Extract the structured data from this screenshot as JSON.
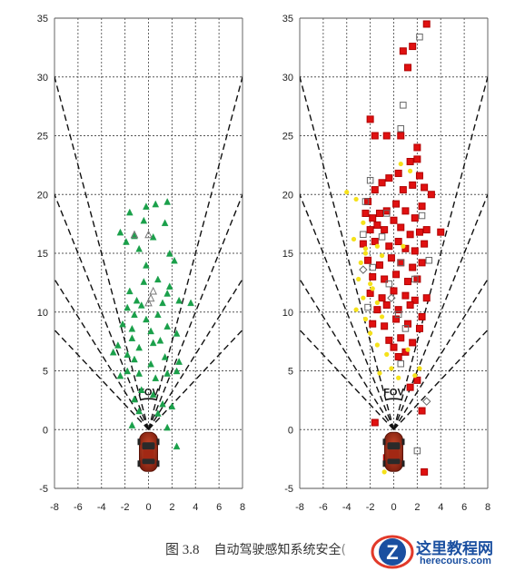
{
  "caption": {
    "figure_number": "图 3.8",
    "text": "自动驾驶感知系统安全",
    "truncated_char": "("
  },
  "watermark": {
    "brand": "这里教程网",
    "site": "herecours.com",
    "logo_letter": "Z"
  },
  "colors": {
    "green": "#1aa04a",
    "red": "#e01010",
    "yellow": "#f5e11a",
    "car": "#b8311c",
    "grid": "#555555"
  },
  "chart_data": [
    {
      "type": "scatter",
      "title": "",
      "xlabel": "",
      "ylabel": "",
      "xlim": [
        -8,
        8
      ],
      "ylim": [
        -5,
        35
      ],
      "xticks": [
        -8,
        -6,
        -4,
        -2,
        0,
        2,
        4,
        6,
        8
      ],
      "yticks": [
        -5,
        0,
        5,
        10,
        15,
        20,
        25,
        30,
        35
      ],
      "grid": true,
      "annotation": "FOV",
      "fov_lines_slopes": [
        3.75,
        2.5,
        1.6,
        1.06
      ],
      "series": [
        {
          "marker": "triangle-filled",
          "color": "#1aa04a",
          "points": [
            [
              -1.6,
              18.5
            ],
            [
              -0.4,
              17.8
            ],
            [
              -0.2,
              19.0
            ],
            [
              0.6,
              19.2
            ],
            [
              1.6,
              19.4
            ],
            [
              -1.2,
              16.5
            ],
            [
              1.4,
              17.6
            ],
            [
              -1.9,
              16.0
            ],
            [
              -2.4,
              16.8
            ],
            [
              0.4,
              16.4
            ],
            [
              -0.8,
              15.4
            ],
            [
              1.8,
              15.0
            ],
            [
              2.2,
              14.4
            ],
            [
              -0.2,
              14.0
            ],
            [
              -0.4,
              12.6
            ],
            [
              0.8,
              12.8
            ],
            [
              1.8,
              12.2
            ],
            [
              -1.6,
              11.8
            ],
            [
              -1.0,
              11.0
            ],
            [
              -0.6,
              10.6
            ],
            [
              -1.8,
              10.4
            ],
            [
              -1.2,
              9.8
            ],
            [
              -0.2,
              9.4
            ],
            [
              0.8,
              9.8
            ],
            [
              1.2,
              10.8
            ],
            [
              1.6,
              11.6
            ],
            [
              2.6,
              11.0
            ],
            [
              3.6,
              10.8
            ],
            [
              -2.2,
              9.0
            ],
            [
              -1.4,
              8.6
            ],
            [
              0.2,
              8.4
            ],
            [
              1.6,
              8.8
            ],
            [
              2.4,
              8.2
            ],
            [
              -1.4,
              7.8
            ],
            [
              -0.8,
              7.0
            ],
            [
              0.4,
              7.4
            ],
            [
              1.0,
              7.6
            ],
            [
              -2.6,
              7.2
            ],
            [
              -3.0,
              6.6
            ],
            [
              -1.8,
              6.4
            ],
            [
              -1.2,
              6.0
            ],
            [
              0.2,
              5.6
            ],
            [
              1.4,
              6.2
            ],
            [
              2.6,
              5.8
            ],
            [
              -2.4,
              4.6
            ],
            [
              -1.8,
              5.0
            ],
            [
              -0.8,
              4.8
            ],
            [
              0.6,
              4.4
            ],
            [
              1.6,
              4.8
            ],
            [
              2.4,
              5.0
            ],
            [
              -0.6,
              3.4
            ],
            [
              0.4,
              3.0
            ],
            [
              -1.2,
              2.6
            ],
            [
              1.2,
              2.2
            ],
            [
              2.0,
              2.0
            ],
            [
              -0.8,
              1.6
            ],
            [
              0.8,
              1.4
            ],
            [
              -1.4,
              0.4
            ],
            [
              1.6,
              0.2
            ],
            [
              2.4,
              -1.4
            ]
          ]
        },
        {
          "marker": "triangle-open",
          "color": "#777777",
          "points": [
            [
              -1.2,
              16.6
            ],
            [
              0.0,
              16.6
            ],
            [
              0.4,
              11.8
            ],
            [
              0.2,
              11.2
            ],
            [
              0.0,
              10.8
            ]
          ]
        }
      ]
    },
    {
      "type": "scatter",
      "title": "",
      "xlabel": "",
      "ylabel": "",
      "xlim": [
        -8,
        8
      ],
      "ylim": [
        -5,
        35
      ],
      "xticks": [
        -8,
        -6,
        -4,
        -2,
        0,
        2,
        4,
        6,
        8
      ],
      "yticks": [
        -5,
        0,
        5,
        10,
        15,
        20,
        25,
        30,
        35
      ],
      "grid": true,
      "annotation": "FOV",
      "fov_lines_slopes": [
        3.75,
        2.5,
        1.6,
        1.06
      ],
      "series": [
        {
          "marker": "square-filled",
          "color": "#e01010",
          "points": [
            [
              2.8,
              34.5
            ],
            [
              1.6,
              32.6
            ],
            [
              0.8,
              32.2
            ],
            [
              1.2,
              30.8
            ],
            [
              -2.0,
              26.4
            ],
            [
              -1.6,
              25.0
            ],
            [
              -0.6,
              25.0
            ],
            [
              0.6,
              25.0
            ],
            [
              2.0,
              24.0
            ],
            [
              1.4,
              22.8
            ],
            [
              2.0,
              23.0
            ],
            [
              -2.2,
              19.4
            ],
            [
              -1.6,
              20.4
            ],
            [
              -1.0,
              21.0
            ],
            [
              -0.4,
              21.4
            ],
            [
              0.4,
              21.8
            ],
            [
              0.8,
              20.4
            ],
            [
              1.6,
              20.8
            ],
            [
              2.2,
              21.6
            ],
            [
              2.6,
              20.6
            ],
            [
              3.2,
              20.0
            ],
            [
              -2.4,
              18.4
            ],
            [
              -1.8,
              18.0
            ],
            [
              -1.2,
              18.4
            ],
            [
              -0.6,
              18.6
            ],
            [
              0.2,
              19.2
            ],
            [
              1.0,
              18.6
            ],
            [
              1.8,
              18.0
            ],
            [
              2.4,
              19.0
            ],
            [
              -2.0,
              17.0
            ],
            [
              -1.4,
              17.4
            ],
            [
              -0.8,
              17.0
            ],
            [
              0.0,
              17.8
            ],
            [
              0.6,
              17.2
            ],
            [
              1.4,
              16.6
            ],
            [
              2.2,
              16.8
            ],
            [
              2.8,
              17.0
            ],
            [
              -2.6,
              15.8
            ],
            [
              -1.6,
              16.0
            ],
            [
              -0.4,
              15.6
            ],
            [
              0.4,
              16.0
            ],
            [
              1.0,
              15.4
            ],
            [
              1.8,
              15.2
            ],
            [
              2.6,
              15.8
            ],
            [
              4.0,
              16.8
            ],
            [
              -2.2,
              14.4
            ],
            [
              -1.2,
              14.0
            ],
            [
              -0.2,
              14.6
            ],
            [
              0.6,
              14.2
            ],
            [
              1.6,
              13.8
            ],
            [
              2.4,
              14.2
            ],
            [
              -1.8,
              13.0
            ],
            [
              -0.8,
              12.8
            ],
            [
              0.2,
              13.2
            ],
            [
              1.2,
              12.6
            ],
            [
              2.0,
              12.8
            ],
            [
              -2.0,
              11.6
            ],
            [
              -1.0,
              11.2
            ],
            [
              0.0,
              11.8
            ],
            [
              1.0,
              11.4
            ],
            [
              1.8,
              11.0
            ],
            [
              2.8,
              11.2
            ],
            [
              -1.4,
              10.2
            ],
            [
              -0.6,
              10.6
            ],
            [
              0.4,
              10.2
            ],
            [
              1.4,
              10.6
            ],
            [
              2.4,
              9.6
            ],
            [
              -1.8,
              9.0
            ],
            [
              -0.8,
              8.8
            ],
            [
              0.2,
              9.4
            ],
            [
              1.2,
              9.0
            ],
            [
              2.2,
              8.6
            ],
            [
              -0.4,
              7.6
            ],
            [
              0.6,
              7.8
            ],
            [
              1.6,
              7.4
            ],
            [
              0.0,
              7.0
            ],
            [
              1.0,
              6.6
            ],
            [
              0.4,
              6.2
            ],
            [
              2.0,
              4.2
            ],
            [
              1.4,
              3.6
            ],
            [
              2.4,
              1.6
            ],
            [
              -1.6,
              0.6
            ],
            [
              2.6,
              -3.6
            ],
            [
              -0.6,
              -2.4
            ]
          ]
        },
        {
          "marker": "square-open",
          "color": "#666666",
          "points": [
            [
              2.2,
              33.4
            ],
            [
              0.8,
              27.6
            ],
            [
              0.6,
              25.6
            ],
            [
              -2.0,
              21.2
            ],
            [
              -2.4,
              19.4
            ],
            [
              -0.6,
              18.4
            ],
            [
              2.4,
              18.2
            ],
            [
              -2.6,
              16.6
            ],
            [
              -1.0,
              16.4
            ],
            [
              0.6,
              14.2
            ],
            [
              3.0,
              14.4
            ],
            [
              -1.8,
              13.8
            ],
            [
              -0.4,
              12.4
            ],
            [
              1.8,
              12.8
            ],
            [
              -2.2,
              10.4
            ],
            [
              0.4,
              9.8
            ],
            [
              1.0,
              8.6
            ],
            [
              0.6,
              5.6
            ],
            [
              2.0,
              -1.8
            ],
            [
              -0.2,
              -3.0
            ]
          ]
        },
        {
          "marker": "diamond-open",
          "color": "#666666",
          "points": [
            [
              -2.6,
              13.6
            ],
            [
              -0.2,
              11.2
            ],
            [
              2.8,
              2.4
            ]
          ]
        },
        {
          "marker": "dot-filled",
          "color": "#f5e11a",
          "points": [
            [
              -4.0,
              20.2
            ],
            [
              -3.2,
              19.6
            ],
            [
              0.6,
              22.6
            ],
            [
              1.4,
              22.0
            ],
            [
              -2.6,
              17.6
            ],
            [
              -3.4,
              16.2
            ],
            [
              -2.4,
              15.4
            ],
            [
              -1.4,
              15.6
            ],
            [
              0.8,
              15.6
            ],
            [
              -2.8,
              14.2
            ],
            [
              -1.0,
              14.8
            ],
            [
              -3.0,
              12.8
            ],
            [
              -2.0,
              12.4
            ],
            [
              -2.6,
              11.2
            ],
            [
              -1.4,
              10.8
            ],
            [
              -3.2,
              10.2
            ],
            [
              -2.4,
              9.4
            ],
            [
              -1.0,
              9.6
            ],
            [
              -2.0,
              8.2
            ],
            [
              -1.4,
              7.2
            ],
            [
              -0.6,
              6.4
            ],
            [
              -0.2,
              5.2
            ],
            [
              0.4,
              4.4
            ],
            [
              -1.2,
              4.8
            ],
            [
              2.2,
              5.2
            ],
            [
              1.8,
              4.6
            ],
            [
              1.2,
              6.8
            ],
            [
              -0.8,
              -3.6
            ],
            [
              -2.4,
              15.0
            ],
            [
              -1.8,
              12.0
            ]
          ]
        }
      ]
    }
  ]
}
